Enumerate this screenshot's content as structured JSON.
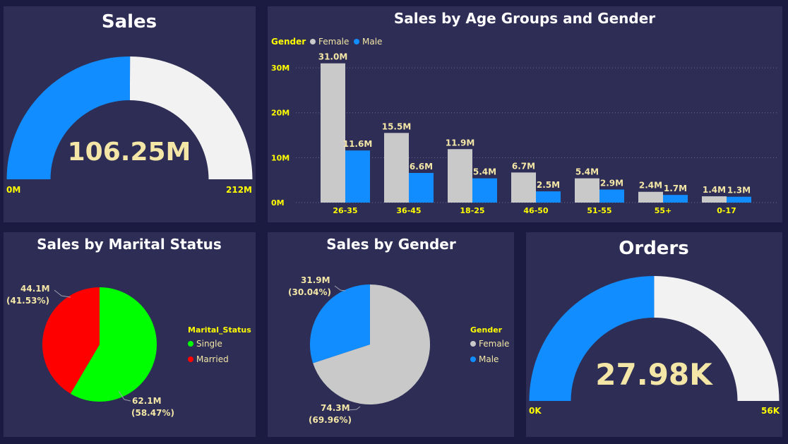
{
  "colors": {
    "background": "#1b1a40",
    "card": "#2d2d55",
    "blue": "#118dff",
    "gauge_track": "#f3f2f2",
    "female": "#c9c9c9",
    "single": "#00ff00",
    "married": "#ff0000",
    "yellow": "#ffff00",
    "value_text": "#f3e6a6"
  },
  "chart_data": [
    {
      "type": "gauge",
      "title": "Sales",
      "value": 106.25,
      "value_label": "106.25M",
      "min": 0,
      "max": 212,
      "min_label": "0M",
      "max_label": "212M"
    },
    {
      "type": "bar",
      "title": "Sales by Age Groups and Gender",
      "legend_title": "Gender",
      "legend_position": "top-left",
      "categories": [
        "26-35",
        "36-45",
        "18-25",
        "46-50",
        "51-55",
        "55+",
        "0-17"
      ],
      "series": [
        {
          "name": "Female",
          "values": [
            31.0,
            15.5,
            11.9,
            6.7,
            5.4,
            2.4,
            1.4
          ],
          "labels": [
            "31.0M",
            "15.5M",
            "11.9M",
            "6.7M",
            "5.4M",
            "2.4M",
            "1.4M"
          ]
        },
        {
          "name": "Male",
          "values": [
            11.6,
            6.6,
            5.4,
            2.5,
            2.9,
            1.7,
            1.3
          ],
          "labels": [
            "11.6M",
            "6.6M",
            "5.4M",
            "2.5M",
            "2.9M",
            "1.7M",
            "1.3M"
          ]
        }
      ],
      "ylim": [
        0,
        33
      ],
      "yticks": [
        0,
        10,
        20,
        30
      ],
      "ytick_labels": [
        "0M",
        "10M",
        "20M",
        "30M"
      ],
      "grid": true
    },
    {
      "type": "pie",
      "title": "Sales by Marital Status",
      "legend_title": "Marital_Status",
      "legend_position": "right",
      "slices": [
        {
          "name": "Single",
          "value": 62.1,
          "percent": 58.47,
          "label_value": "62.1M",
          "label_percent": "(58.47%)"
        },
        {
          "name": "Married",
          "value": 44.1,
          "percent": 41.53,
          "label_value": "44.1M",
          "label_percent": "(41.53%)"
        }
      ]
    },
    {
      "type": "pie",
      "title": "Sales by Gender",
      "legend_title": "Gender",
      "legend_position": "right",
      "slices": [
        {
          "name": "Female",
          "value": 74.3,
          "percent": 69.96,
          "label_value": "74.3M",
          "label_percent": "(69.96%)"
        },
        {
          "name": "Male",
          "value": 31.9,
          "percent": 30.04,
          "label_value": "31.9M",
          "label_percent": "(30.04%)"
        }
      ]
    },
    {
      "type": "gauge",
      "title": "Orders",
      "value": 27.98,
      "value_label": "27.98K",
      "min": 0,
      "max": 56,
      "min_label": "0K",
      "max_label": "56K"
    }
  ]
}
